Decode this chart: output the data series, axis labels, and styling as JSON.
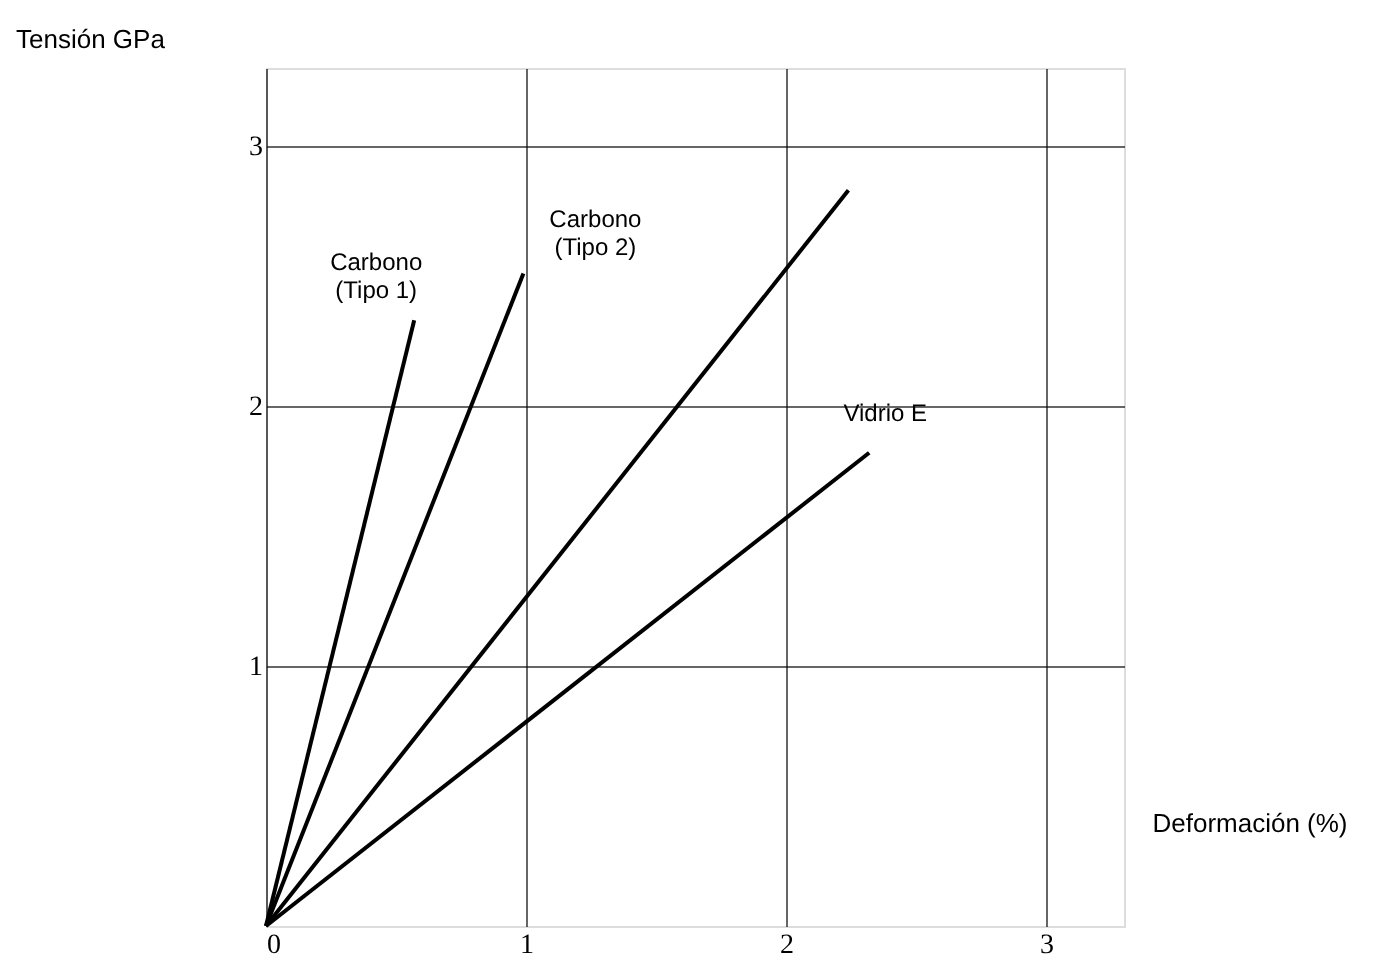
{
  "chart_data": {
    "type": "line",
    "xlabel": "Deformación  (%)",
    "ylabel": "Tensión  GPa",
    "xlim": [
      0,
      3.3
    ],
    "ylim": [
      0,
      3.3
    ],
    "xticks": [
      0,
      1,
      2,
      3
    ],
    "yticks": [
      1,
      2,
      3
    ],
    "grid": true,
    "marker": "none",
    "line_style": "solid",
    "series": [
      {
        "name": "Carbono\n(Tipo 1)",
        "color": "#000000",
        "x": [
          0,
          0.57
        ],
        "values": [
          0,
          2.33
        ]
      },
      {
        "name": "Carbono\n(Tipo 2)",
        "color": "#000000",
        "x": [
          0,
          0.99
        ],
        "values": [
          0,
          2.51
        ]
      },
      {
        "color": "#000000",
        "x": [
          0,
          2.24
        ],
        "values": [
          0,
          2.83
        ]
      },
      {
        "name": "Vidrio E",
        "color": "#000000",
        "x": [
          0,
          2.32
        ],
        "values": [
          0,
          1.82
        ]
      }
    ]
  }
}
